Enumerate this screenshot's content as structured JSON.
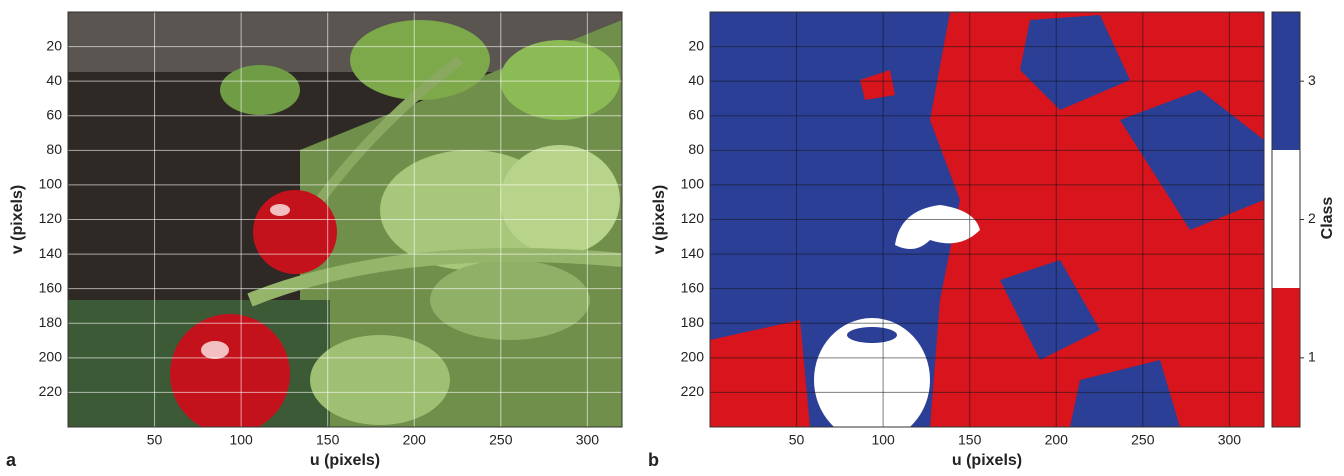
{
  "panels": [
    {
      "label": "a",
      "xlabel": "u (pixels)",
      "ylabel": "v (pixels)",
      "xlim": [
        0,
        320
      ],
      "ylim": [
        0,
        240
      ],
      "xticks": [
        50,
        100,
        150,
        200,
        250,
        300
      ],
      "yticks": [
        20,
        40,
        60,
        80,
        100,
        120,
        140,
        160,
        180,
        200,
        220
      ]
    },
    {
      "label": "b",
      "xlabel": "u (pixels)",
      "ylabel": "v (pixels)",
      "xlim": [
        0,
        320
      ],
      "ylim": [
        0,
        240
      ],
      "xticks": [
        50,
        100,
        150,
        200,
        250,
        300
      ],
      "yticks": [
        20,
        40,
        60,
        80,
        100,
        120,
        140,
        160,
        180,
        200,
        220
      ]
    }
  ],
  "colorbar": {
    "label": "Class",
    "lim": [
      0.5,
      3.5
    ],
    "ticks": [
      1,
      2,
      3
    ]
  }
}
